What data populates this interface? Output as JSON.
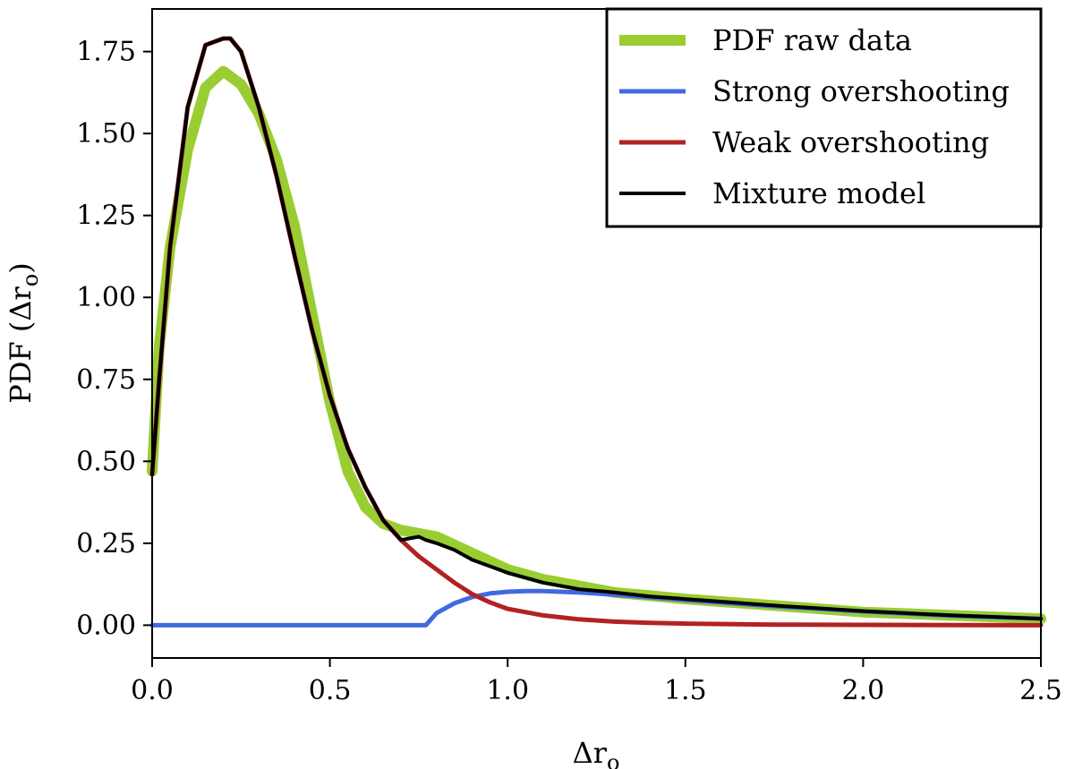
{
  "chart_data": {
    "type": "line",
    "xlabel": "Δr",
    "xlabel_sub": "o",
    "ylabel": "PDF (Δr",
    "ylabel_sub": "o",
    "ylabel_close": ")",
    "xlim": [
      0.0,
      2.5
    ],
    "ylim": [
      -0.1,
      1.88
    ],
    "xticks": [
      0.0,
      0.5,
      1.0,
      1.5,
      2.0,
      2.5
    ],
    "xtick_labels": [
      "0.0",
      "0.5",
      "1.0",
      "1.5",
      "2.0",
      "2.5"
    ],
    "yticks": [
      0.0,
      0.25,
      0.5,
      0.75,
      1.0,
      1.25,
      1.5,
      1.75
    ],
    "ytick_labels": [
      "0.00",
      "0.25",
      "0.50",
      "0.75",
      "1.00",
      "1.25",
      "1.50",
      "1.75"
    ],
    "grid": false,
    "legend_position": "top-right",
    "series": [
      {
        "name": "PDF raw data",
        "color": "#9acd32",
        "x": [
          0.0,
          0.02,
          0.05,
          0.1,
          0.15,
          0.2,
          0.25,
          0.3,
          0.35,
          0.4,
          0.45,
          0.5,
          0.55,
          0.6,
          0.65,
          0.7,
          0.75,
          0.8,
          0.9,
          1.0,
          1.1,
          1.2,
          1.3,
          1.4,
          1.5,
          1.75,
          2.0,
          2.25,
          2.5
        ],
        "y": [
          0.47,
          0.85,
          1.15,
          1.45,
          1.64,
          1.69,
          1.65,
          1.56,
          1.42,
          1.22,
          0.95,
          0.68,
          0.47,
          0.36,
          0.31,
          0.29,
          0.28,
          0.27,
          0.22,
          0.17,
          0.14,
          0.12,
          0.1,
          0.09,
          0.08,
          0.06,
          0.04,
          0.03,
          0.02
        ]
      },
      {
        "name": "Strong overshooting",
        "color": "#4169e1",
        "x": [
          0.0,
          0.77,
          0.8,
          0.85,
          0.9,
          0.95,
          1.0,
          1.05,
          1.1,
          1.2,
          1.3,
          1.4,
          1.5,
          1.75,
          2.0,
          2.25,
          2.5
        ],
        "y": [
          0.0,
          0.0,
          0.037,
          0.067,
          0.086,
          0.097,
          0.102,
          0.104,
          0.104,
          0.1,
          0.093,
          0.085,
          0.077,
          0.058,
          0.042,
          0.029,
          0.02
        ]
      },
      {
        "name": "Weak overshooting",
        "color": "#b22222",
        "x": [
          0.0,
          0.02,
          0.05,
          0.1,
          0.15,
          0.2,
          0.22,
          0.25,
          0.3,
          0.35,
          0.4,
          0.45,
          0.5,
          0.55,
          0.6,
          0.65,
          0.7,
          0.75,
          0.8,
          0.85,
          0.9,
          0.95,
          1.0,
          1.1,
          1.2,
          1.3,
          1.4,
          1.5,
          1.75,
          2.0,
          2.5
        ],
        "y": [
          0.46,
          0.75,
          1.15,
          1.58,
          1.77,
          1.79,
          1.79,
          1.75,
          1.58,
          1.37,
          1.13,
          0.9,
          0.7,
          0.54,
          0.42,
          0.32,
          0.26,
          0.21,
          0.17,
          0.13,
          0.095,
          0.07,
          0.05,
          0.03,
          0.018,
          0.011,
          0.007,
          0.005,
          0.002,
          0.001,
          0.0
        ]
      },
      {
        "name": "Mixture model",
        "color": "#000000",
        "x": [
          0.0,
          0.02,
          0.05,
          0.1,
          0.15,
          0.2,
          0.22,
          0.25,
          0.3,
          0.35,
          0.4,
          0.45,
          0.5,
          0.55,
          0.6,
          0.65,
          0.7,
          0.75,
          0.77,
          0.8,
          0.85,
          0.9,
          0.95,
          1.0,
          1.1,
          1.2,
          1.3,
          1.4,
          1.5,
          1.75,
          2.0,
          2.25,
          2.5
        ],
        "y": [
          0.46,
          0.75,
          1.15,
          1.58,
          1.77,
          1.79,
          1.79,
          1.75,
          1.58,
          1.37,
          1.13,
          0.9,
          0.7,
          0.54,
          0.42,
          0.32,
          0.26,
          0.27,
          0.26,
          0.25,
          0.23,
          0.2,
          0.18,
          0.16,
          0.13,
          0.11,
          0.1,
          0.088,
          0.08,
          0.06,
          0.043,
          0.03,
          0.02
        ]
      }
    ]
  }
}
